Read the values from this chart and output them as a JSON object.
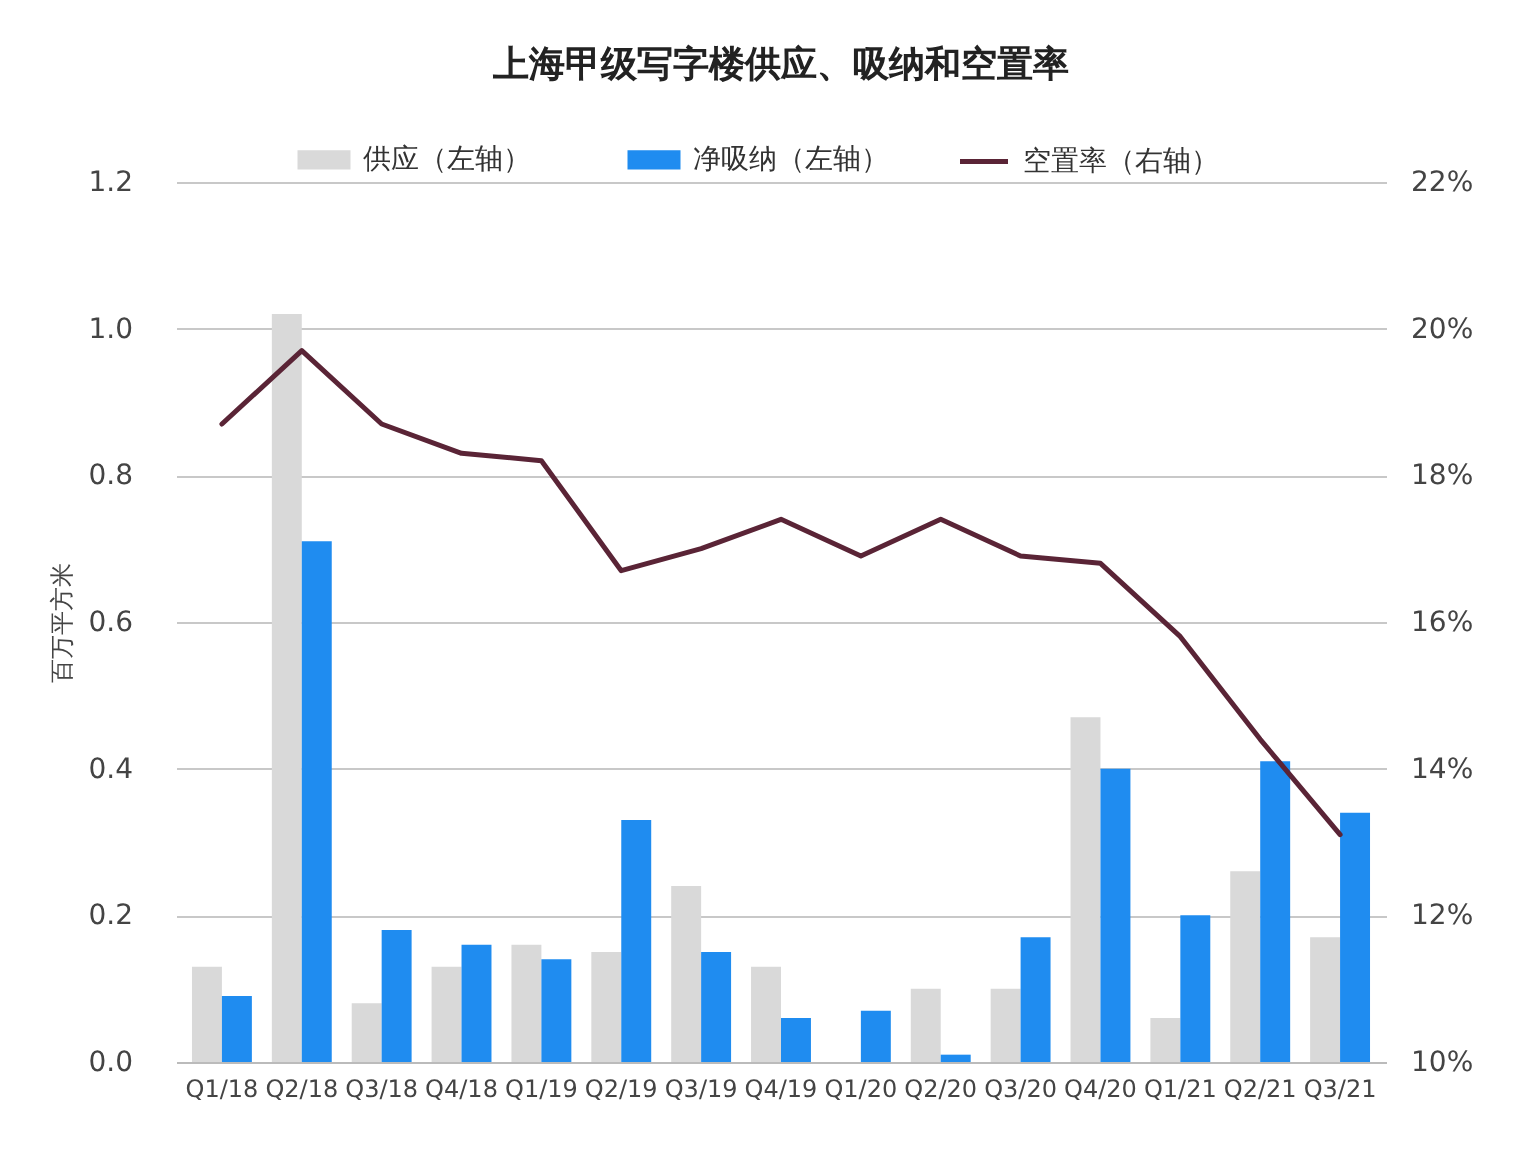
{
  "chart_data": {
    "type": "bar",
    "title": "上海甲级写字楼供应、吸纳和空置率",
    "ylabel": "百万平方米",
    "categories": [
      "Q1/18",
      "Q2/18",
      "Q3/18",
      "Q4/18",
      "Q1/19",
      "Q2/19",
      "Q3/19",
      "Q4/19",
      "Q1/20",
      "Q2/20",
      "Q3/20",
      "Q4/20",
      "Q1/21",
      "Q2/21",
      "Q3/21"
    ],
    "series": [
      {
        "name": "供应（左轴）",
        "color": "#d9d9d9",
        "values": [
          0.13,
          1.02,
          0.08,
          0.13,
          0.16,
          0.15,
          0.24,
          0.13,
          0,
          0.1,
          0.1,
          0.47,
          0.06,
          0.26,
          0.17
        ]
      },
      {
        "name": "净吸纳（左轴）",
        "color": "#1f8cf0",
        "values": [
          0.09,
          0.71,
          0.18,
          0.16,
          0.14,
          0.33,
          0.15,
          0.06,
          0.07,
          0.01,
          0.17,
          0.4,
          0.2,
          0.41,
          0.34
        ]
      },
      {
        "name": "空置率（右轴）",
        "type": "line",
        "axis": "y2",
        "color": "#5a2436",
        "values": [
          18.7,
          19.7,
          18.7,
          18.3,
          18.2,
          16.7,
          17.0,
          17.4,
          16.9,
          17.4,
          16.9,
          16.8,
          15.8,
          14.4,
          13.1
        ]
      }
    ],
    "ylim": [
      0,
      1.2
    ],
    "yticks": [
      {
        "value": 0,
        "label": "0.0"
      },
      0.2,
      0.4,
      0.6,
      0.8,
      {
        "value": 1,
        "label": "1.0"
      },
      1.2
    ],
    "y2lim": [
      10,
      22
    ],
    "y2ticks": [
      {
        "value": 10,
        "label": "10%"
      },
      {
        "value": 12,
        "label": "12%"
      },
      {
        "value": 14,
        "label": "14%"
      },
      {
        "value": 16,
        "label": "16%"
      },
      {
        "value": 18,
        "label": "18%"
      },
      {
        "value": 20,
        "label": "20%"
      },
      {
        "value": 22,
        "label": "22%"
      }
    ],
    "grid": "y",
    "legend": "top"
  }
}
